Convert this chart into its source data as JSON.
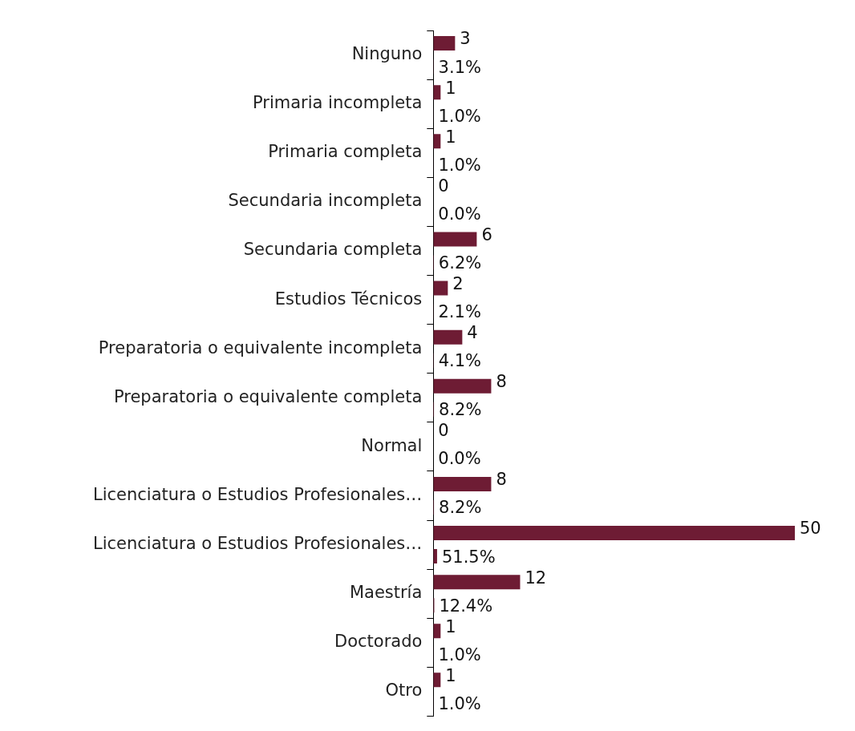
{
  "chart_data": {
    "type": "bar",
    "orientation": "horizontal",
    "grid": false,
    "legend": false,
    "tick_labels": "y",
    "categories": [
      "Ninguno",
      "Primaria incompleta",
      "Primaria completa",
      "Secundaria incompleta",
      "Secundaria completa",
      "Estudios Técnicos",
      "Preparatoria o equivalente incompleta",
      "Preparatoria o equivalente completa",
      "Normal",
      "Licenciatura o Estudios Profesionales…",
      "Licenciatura o Estudios Profesionales…",
      "Maestría",
      "Doctorado",
      "Otro"
    ],
    "series": [
      {
        "color": "#6e1c34",
        "values": [
          3,
          1,
          1,
          0,
          6,
          2,
          4,
          8,
          0,
          8,
          50,
          12,
          1,
          1
        ],
        "value_labels": [
          "3",
          "1",
          "1",
          "0",
          "6",
          "2",
          "4",
          "8",
          "0",
          "8",
          "50",
          "12",
          "1",
          "1"
        ]
      },
      {
        "color": "#6e1c34",
        "values": [
          0.031,
          0.01,
          0.01,
          0,
          0.062,
          0.021,
          0.041,
          0.082,
          0,
          0.082,
          0.515,
          0.124,
          0.01,
          0.01
        ],
        "value_labels": [
          "3.1%",
          "1.0%",
          "1.0%",
          "0.0%",
          "6.2%",
          "2.1%",
          "4.1%",
          "8.2%",
          "0.0%",
          "8.2%",
          "51.5%",
          "12.4%",
          "1.0%",
          "1.0%"
        ]
      }
    ]
  }
}
